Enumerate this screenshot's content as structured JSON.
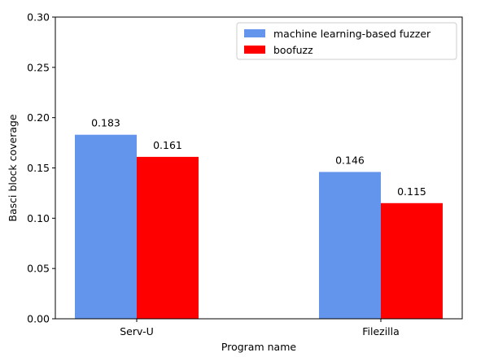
{
  "chart_data": {
    "type": "bar",
    "title": "",
    "xlabel": "Program name",
    "ylabel": "Basci block coverage",
    "categories": [
      "Serv-U",
      "Filezilla"
    ],
    "series": [
      {
        "name": "machine learning-based fuzzer",
        "values": [
          0.183,
          0.146
        ],
        "labels": [
          "0.183",
          "0.146"
        ],
        "color": "#6495ED"
      },
      {
        "name": "boofuzz",
        "values": [
          0.161,
          0.115
        ],
        "labels": [
          "0.161",
          "0.115"
        ],
        "color": "#FF0000"
      }
    ],
    "ylim": [
      0,
      0.3
    ],
    "yticks": [
      0.0,
      0.05,
      0.1,
      0.15,
      0.2,
      0.25,
      0.3
    ],
    "ytick_labels": [
      "0.00",
      "0.05",
      "0.10",
      "0.15",
      "0.20",
      "0.25",
      "0.30"
    ],
    "grid": false,
    "legend_position": "top-right"
  }
}
